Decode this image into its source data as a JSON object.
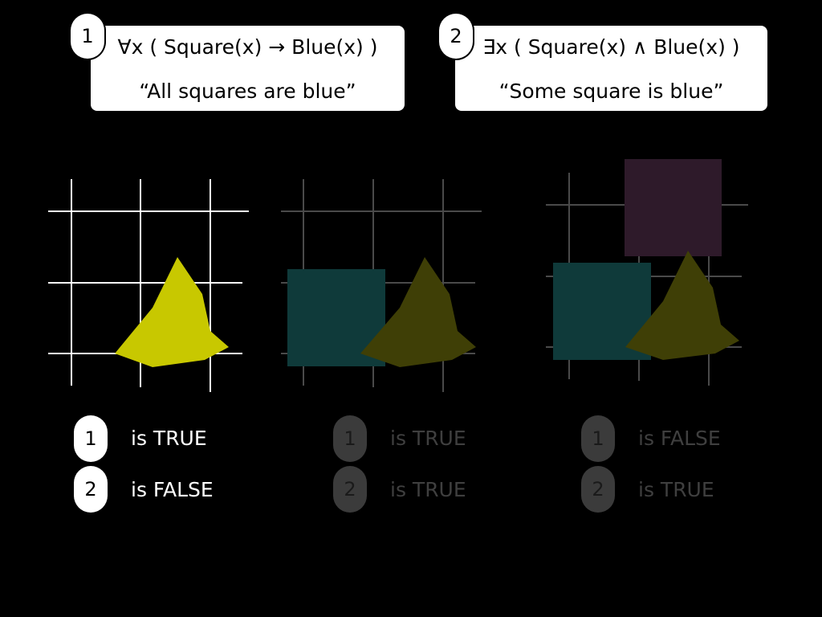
{
  "formulas": [
    {
      "number": "1",
      "expression": "∀x ( Square(x) → Blue(x) )",
      "reading": "“All squares are blue”"
    },
    {
      "number": "2",
      "expression": "∃x ( Square(x) ∧ Blue(x) )",
      "reading": "“Some square is blue”"
    }
  ],
  "scenes": [
    {
      "results": [
        {
          "formula": "1",
          "status": "is TRUE"
        },
        {
          "formula": "2",
          "status": "is FALSE"
        }
      ]
    },
    {
      "results": [
        {
          "formula": "1",
          "status": "is TRUE"
        },
        {
          "formula": "2",
          "status": "is TRUE"
        }
      ]
    },
    {
      "results": [
        {
          "formula": "1",
          "status": "is FALSE"
        },
        {
          "formula": "2",
          "status": "is TRUE"
        }
      ]
    }
  ],
  "colors": {
    "background": "#000000",
    "triangle_bright": "#c8c800",
    "triangle_dim": "#3f3f06",
    "square_teal": "#0f3a3a",
    "square_purple": "#2e1a2a",
    "grid_bright": "#ffffff",
    "grid_dim": "#4a4a4a"
  }
}
